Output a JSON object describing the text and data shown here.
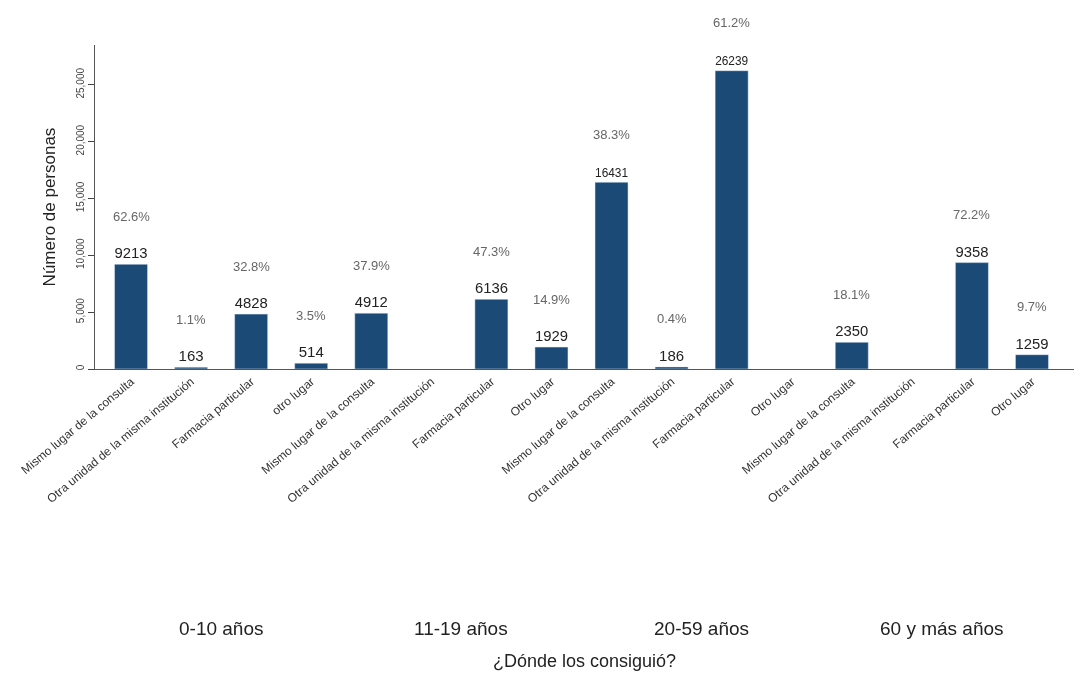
{
  "chart_data": {
    "type": "bar",
    "ylabel": "Número de personas",
    "categories": [
      "Mismo lugar de la consulta",
      "Otra unidad de la misma institución",
      "Farmacia particular",
      "otro lugar",
      "Mismo lugar de la consulta",
      "Otra unidad de la misma institución",
      "Farmacia particular",
      "Otro lugar",
      "Mismo lugar de la consulta",
      "Otra unidad de la misma institución",
      "Farmacia particular",
      "Otro lugar",
      "Mismo lugar de la consulta",
      "Otra unidad de la misma institución",
      "Farmacia particular",
      "Otro lugar"
    ],
    "values": [
      9213,
      163,
      4828,
      514,
      4912,
      null,
      6136,
      1929,
      16431,
      186,
      26239,
      null,
      2350,
      null,
      9358,
      1259
    ],
    "color": "#1c4a76",
    "data_labels": true,
    "ylim": [
      0,
      28500
    ],
    "yticks": [
      0,
      {
        "value": 5000,
        "label": "5,000"
      },
      {
        "value": 10000,
        "label": "10,000"
      },
      {
        "value": 15000,
        "label": "15,000"
      },
      {
        "value": 20000,
        "label": "20,000"
      },
      {
        "value": 25000,
        "label": "25,000"
      }
    ],
    "legend": false,
    "annotations": [
      "62.6%",
      "1.1%",
      "32.8%",
      "3.5%",
      "37.9%",
      "47.3%",
      "14.9%",
      "38.3%",
      "0.4%",
      "61.2%",
      "18.1%",
      "72.2%",
      "9.7%",
      "0-10 años",
      "11-19 años",
      "20-59 años",
      "60 y más años",
      "¿Dónde los consiguió?"
    ]
  }
}
